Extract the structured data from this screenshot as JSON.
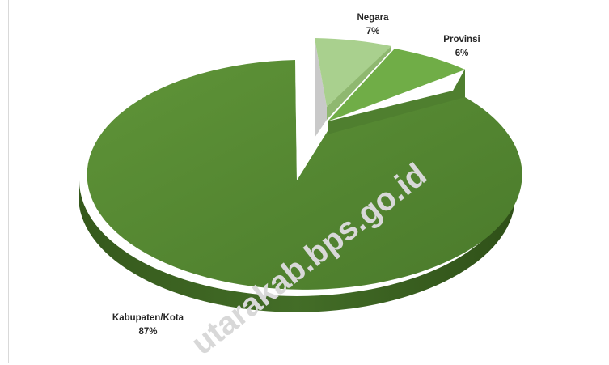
{
  "chart_data": {
    "type": "pie",
    "style": "3d-exploded",
    "categories": [
      "Negara",
      "Provinsi",
      "Kabupaten/Kota"
    ],
    "values": [
      7,
      6,
      87
    ],
    "labels": {
      "negara_name": "Negara",
      "negara_pct": "7%",
      "provinsi_name": "Provinsi",
      "provinsi_pct": "6%",
      "kabkota_name": "Kabupaten/Kota",
      "kabkota_pct": "87%"
    },
    "colors": {
      "Negara": "#a9d08e",
      "Provinsi": "#70ad47",
      "Kabupaten/Kota": "#548235"
    }
  },
  "watermark": "utarakab.bps.go.id"
}
